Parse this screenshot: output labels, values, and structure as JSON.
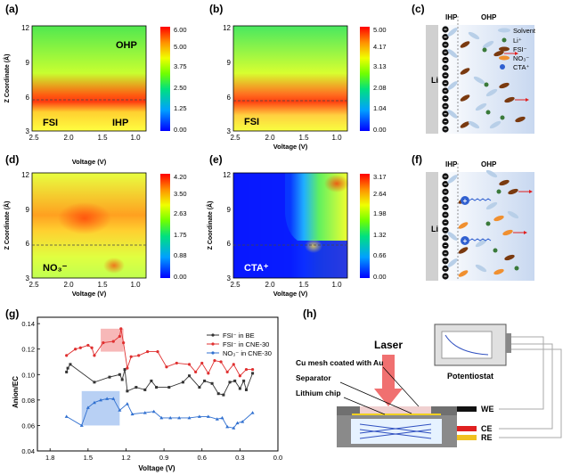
{
  "panels": {
    "a": {
      "letter": "(a)",
      "ylabel": "Z Coordinate (Å)",
      "xlabel": "",
      "xticks": [
        "2.5",
        "2.0",
        "1.5",
        "1.0"
      ],
      "yticks": [
        "3",
        "6",
        "9",
        "12"
      ],
      "cbar_ticks": [
        "6.00",
        "5.00",
        "3.75",
        "2.50",
        "1.25",
        "0.00"
      ],
      "labels": {
        "ohp": "OHP",
        "fsi": "FSI",
        "ihp": "IHP"
      }
    },
    "b": {
      "letter": "(b)",
      "xlabel": "Voltage (V)",
      "xticks": [
        "2.5",
        "2.0",
        "1.5",
        "1.0"
      ],
      "yticks": [
        "3",
        "6",
        "9",
        "12"
      ],
      "cbar_ticks": [
        "5.00",
        "4.17",
        "3.13",
        "2.08",
        "1.04",
        "0.00"
      ],
      "labels": {
        "fsi": "FSI"
      }
    },
    "c": {
      "letter": "(c)",
      "ihp": "IHP",
      "ohp": "OHP",
      "li": "Li",
      "legend": [
        "Solvent",
        "Li⁺",
        "FSI⁻",
        "NO₃⁻",
        "CTA⁺"
      ]
    },
    "d": {
      "letter": "(d)",
      "ylabel": "Z Coordinate (Å)",
      "xlabel": "Voltage (V)",
      "xticks": [
        "2.5",
        "2.0",
        "1.5",
        "1.0"
      ],
      "yticks": [
        "3",
        "6",
        "9",
        "12"
      ],
      "cbar_ticks": [
        "4.20",
        "3.50",
        "2.63",
        "1.75",
        "0.88",
        "0.00"
      ],
      "labels": {
        "no3": "NO₃⁻"
      }
    },
    "e": {
      "letter": "(e)",
      "ylabel": "Z Coordinate (Å)",
      "xlabel": "Voltage (V)",
      "xticks": [
        "2.5",
        "2.0",
        "1.5",
        "1.0"
      ],
      "yticks": [
        "3",
        "6",
        "9",
        "12"
      ],
      "cbar_ticks": [
        "3.17",
        "2.64",
        "1.98",
        "1.32",
        "0.66",
        "0.00"
      ],
      "labels": {
        "cta": "CTA⁺"
      }
    },
    "f": {
      "letter": "(f)",
      "ihp": "IHP",
      "ohp": "OHP",
      "li": "Li"
    },
    "h": {
      "letter": "(h)",
      "laser": "Laser",
      "cu_mesh": "Cu mesh coated with Au",
      "separator": "Separator",
      "lithium_chip": "Lithium chip",
      "potentiostat": "Potentiostat",
      "we": "WE",
      "ce": "CE",
      "re": "RE"
    }
  },
  "chart_data": {
    "type": "line",
    "letter": "(g)",
    "xlabel": "Voltage (V)",
    "ylabel": "Anion/EC",
    "xlim": [
      1.9,
      0.0
    ],
    "ylim": [
      0.04,
      0.145
    ],
    "xticks": [
      1.8,
      1.5,
      1.2,
      0.9,
      0.6,
      0.3,
      0.0
    ],
    "yticks": [
      0.04,
      0.06,
      0.08,
      0.1,
      0.12,
      0.14
    ],
    "xtick_labels": [
      "1.8",
      "1.5",
      "1.2",
      "0.9",
      "0.6",
      "0.3",
      "0.0"
    ],
    "ytick_labels": [
      "0.04",
      "0.06",
      "0.08",
      "0.10",
      "0.12",
      "0.14"
    ],
    "legend_position": "top-right",
    "series": [
      {
        "name": "FSI⁻ in BE",
        "color": "#333333",
        "x": [
          1.67,
          1.66,
          1.64,
          1.45,
          1.33,
          1.25,
          1.23,
          1.21,
          1.19,
          1.12,
          1.05,
          1.0,
          0.96,
          0.86,
          0.75,
          0.7,
          0.62,
          0.58,
          0.52,
          0.47,
          0.43,
          0.38,
          0.34,
          0.3,
          0.27,
          0.25,
          0.2
        ],
        "y": [
          0.102,
          0.105,
          0.108,
          0.094,
          0.098,
          0.1,
          0.096,
          0.104,
          0.087,
          0.09,
          0.088,
          0.095,
          0.09,
          0.09,
          0.094,
          0.099,
          0.09,
          0.095,
          0.093,
          0.085,
          0.084,
          0.094,
          0.095,
          0.089,
          0.095,
          0.088,
          0.101
        ]
      },
      {
        "name": "FSI⁻ in CNE-30",
        "color": "#e03030",
        "x": [
          1.67,
          1.6,
          1.56,
          1.5,
          1.47,
          1.45,
          1.38,
          1.3,
          1.25,
          1.24,
          1.22,
          1.19,
          1.16,
          1.1,
          1.03,
          0.95,
          0.88,
          0.8,
          0.7,
          0.65,
          0.6,
          0.55,
          0.5,
          0.45,
          0.4,
          0.35,
          0.3,
          0.25,
          0.2
        ],
        "y": [
          0.115,
          0.12,
          0.121,
          0.123,
          0.121,
          0.115,
          0.125,
          0.126,
          0.13,
          0.136,
          0.125,
          0.105,
          0.114,
          0.115,
          0.118,
          0.118,
          0.106,
          0.109,
          0.108,
          0.102,
          0.109,
          0.101,
          0.111,
          0.11,
          0.102,
          0.108,
          0.099,
          0.104,
          0.104
        ]
      },
      {
        "name": "NO₃⁻ in CNE-30",
        "color": "#3070d0",
        "x": [
          1.67,
          1.55,
          1.5,
          1.45,
          1.4,
          1.35,
          1.3,
          1.25,
          1.19,
          1.15,
          1.05,
          0.98,
          0.92,
          0.85,
          0.78,
          0.7,
          0.62,
          0.55,
          0.48,
          0.44,
          0.4,
          0.35,
          0.32,
          0.28,
          0.2
        ],
        "y": [
          0.067,
          0.06,
          0.074,
          0.078,
          0.08,
          0.081,
          0.081,
          0.072,
          0.077,
          0.069,
          0.07,
          0.071,
          0.066,
          0.066,
          0.066,
          0.066,
          0.067,
          0.067,
          0.065,
          0.066,
          0.059,
          0.058,
          0.062,
          0.063,
          0.07
        ]
      }
    ],
    "highlights": [
      {
        "color": "#f4a0a0",
        "x": [
          1.4,
          1.22
        ],
        "y": [
          0.118,
          0.136
        ]
      },
      {
        "color": "#a0c0f0",
        "x": [
          1.55,
          1.25
        ],
        "y": [
          0.06,
          0.087
        ]
      }
    ]
  }
}
